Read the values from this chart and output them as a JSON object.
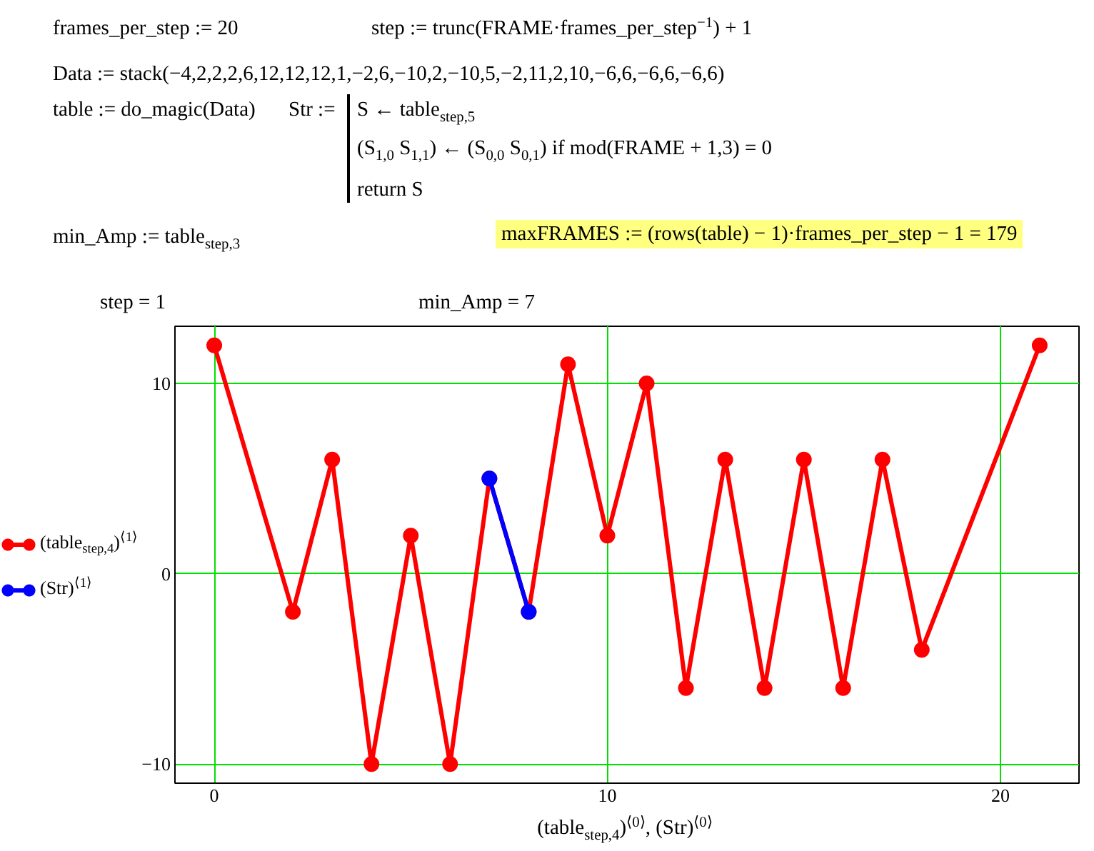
{
  "chart_data": {
    "type": "line",
    "xlabel": "(table$_{step,4}$)$^{⟨0⟩}$, (Str)$^{⟨0⟩}$",
    "annotations": [
      "frames_per_step := 20",
      "step := trunc(FRAME·frames_per_step$^{−1}$) + 1",
      "Data := stack(−4,2,2,2,6,12,12,12,1,−2,6,−10,2,−10,5,−2,11,2,10,−6,6,−6,6,−6,6)",
      "table := do_magic(Data)",
      "Str :=",
      "S ← table$_{step,5}$",
      "(S$_{1,0}$  S$_{1,1}$) ← (S$_{0,0}$  S$_{0,1}$)  if  mod(FRAME + 1,3) = 0",
      "return  S",
      "min_Amp := table$_{step,3}$",
      "maxFRAMES := (rows(table) − 1)·frames_per_step − 1 = 179",
      "step = 1",
      "min_Amp = 7"
    ],
    "series": [
      {
        "name": "(table$_{step,4}$)$^{⟨1⟩}$",
        "color": "#ff0000",
        "x": [
          0,
          2,
          3,
          4,
          5,
          6,
          7,
          8,
          9,
          10,
          11,
          12,
          13,
          14,
          15,
          16,
          17,
          18,
          21
        ],
        "values": [
          12,
          -2,
          6,
          -10,
          2,
          -10,
          5,
          -2,
          11,
          2,
          10,
          -6,
          6,
          -6,
          6,
          -6,
          6,
          -4,
          12
        ]
      },
      {
        "name": "(Str)$^{⟨1⟩}$",
        "color": "#0000ff",
        "x": [
          7,
          8
        ],
        "values": [
          5,
          -2
        ]
      }
    ],
    "xlim": [
      -1,
      22
    ],
    "ylim": [
      -11,
      13
    ],
    "xticks": [
      0,
      10,
      20
    ],
    "yticks": [
      {
        "value": -10,
        "label": "−10"
      },
      0,
      10
    ],
    "grid": true,
    "legend": "left",
    "marker": "circle",
    "line_style": "solid"
  }
}
